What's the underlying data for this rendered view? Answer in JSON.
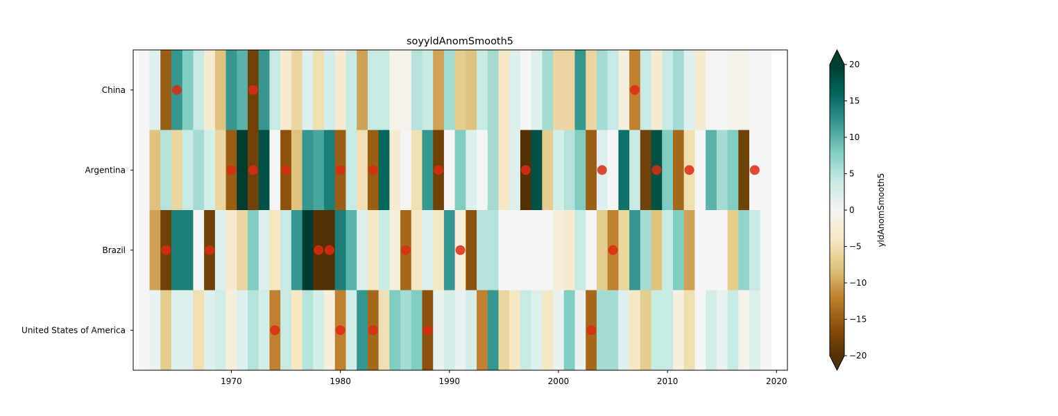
{
  "chart_data": {
    "type": "heatmap",
    "title": "soyyldAnomSmooth5",
    "rows": [
      "China",
      "Argentina",
      "Brazil",
      "United States of America"
    ],
    "years": [
      1962,
      1963,
      1964,
      1965,
      1966,
      1967,
      1968,
      1969,
      1970,
      1971,
      1972,
      1973,
      1974,
      1975,
      1976,
      1977,
      1978,
      1979,
      1980,
      1981,
      1982,
      1983,
      1984,
      1985,
      1986,
      1987,
      1988,
      1989,
      1990,
      1991,
      1992,
      1993,
      1994,
      1995,
      1996,
      1997,
      1998,
      1999,
      2000,
      2001,
      2002,
      2003,
      2004,
      2005,
      2006,
      2007,
      2008,
      2009,
      2010,
      2011,
      2012,
      2013,
      2014,
      2015,
      2016,
      2017,
      2018,
      2019
    ],
    "values": [
      [
        0,
        2,
        -15,
        12,
        8,
        4,
        -3,
        -8,
        12,
        10,
        -18,
        12,
        4,
        -3,
        -6,
        2,
        -5,
        3,
        -3,
        4,
        -10,
        4,
        4,
        -1,
        -1,
        5,
        4,
        -10,
        6,
        -7,
        -8,
        4,
        6,
        -4,
        2,
        0,
        2,
        6,
        -6,
        -6,
        12,
        -6,
        6,
        4,
        -2,
        -12,
        4,
        -3,
        4,
        6,
        2,
        -3,
        0,
        0,
        -1,
        -1,
        0,
        0
      ],
      [
        0,
        -8,
        5,
        -6,
        4,
        6,
        3,
        -6,
        -15,
        22,
        -18,
        18,
        0,
        -16,
        -8,
        12,
        11,
        14,
        -15,
        4,
        -5,
        -15,
        16,
        -3,
        0,
        -5,
        12,
        -18,
        0,
        8,
        2,
        0,
        6,
        -4,
        2,
        -20,
        18,
        -7,
        3,
        5,
        8,
        -15,
        2,
        0,
        15,
        4,
        -18,
        18,
        8,
        -14,
        -5,
        0,
        10,
        6,
        8,
        -18,
        0,
        0
      ],
      [
        0,
        -10,
        -18,
        14,
        14,
        0,
        -18,
        2,
        -3,
        -6,
        8,
        2,
        -4,
        4,
        12,
        20,
        -20,
        -20,
        14,
        10,
        2,
        -4,
        4,
        -2,
        -14,
        -4,
        2,
        -4,
        12,
        -2,
        -16,
        5,
        5,
        0,
        0,
        0,
        0,
        0,
        -2,
        -3,
        4,
        0,
        -7,
        -12,
        -6,
        12,
        6,
        -8,
        4,
        8,
        -10,
        0,
        0,
        0,
        -7,
        7,
        4,
        0
      ],
      [
        0,
        1,
        -7,
        2,
        2,
        -5,
        2,
        3,
        -2,
        2,
        5,
        3,
        -12,
        4,
        -4,
        5,
        3,
        -2,
        -12,
        3,
        12,
        -14,
        -5,
        8,
        6,
        8,
        -16,
        1,
        3,
        1,
        3,
        -12,
        12,
        -6,
        -4,
        4,
        2,
        -4,
        1,
        8,
        1,
        -14,
        6,
        6,
        2,
        -4,
        -7,
        4,
        4,
        -2,
        -5,
        0,
        3,
        1,
        4,
        -1,
        2,
        0
      ]
    ],
    "markers": [
      {
        "row": "China",
        "years": [
          1965,
          1972,
          2007
        ]
      },
      {
        "row": "Argentina",
        "years": [
          1970,
          1972,
          1975,
          1980,
          1983,
          1989,
          1997,
          2004,
          2009,
          2012,
          2018
        ]
      },
      {
        "row": "Brazil",
        "years": [
          1964,
          1968,
          1978,
          1979,
          1986,
          1991,
          2005
        ]
      },
      {
        "row": "United States of America",
        "years": [
          1974,
          1980,
          1983,
          1988,
          2003
        ]
      }
    ],
    "xlim": [
      1961,
      2021
    ],
    "xticks": [
      1970,
      1980,
      1990,
      2000,
      2010,
      2020
    ],
    "colorbar": {
      "label": "yldAnomSmooth5",
      "range": [
        -20,
        20
      ],
      "ticks": [
        -20,
        -15,
        -10,
        -5,
        0,
        5,
        10,
        15,
        20
      ],
      "extend": "both",
      "colormap": [
        "#543005",
        "#8c510a",
        "#bf812d",
        "#dfc27d",
        "#f6e8c3",
        "#f5f5f5",
        "#c7eae5",
        "#80cdc1",
        "#35978f",
        "#01665e",
        "#003c30"
      ]
    },
    "marker_color": "#dd2a12"
  }
}
